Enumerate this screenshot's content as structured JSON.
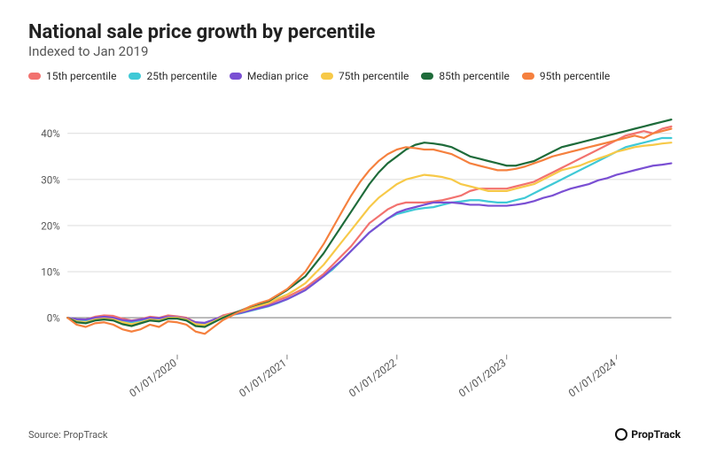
{
  "title": "National sale price growth by percentile",
  "subtitle": "Indexed to Jan 2019",
  "source_label": "Source: PropTrack",
  "brand": "PropTrack",
  "chart": {
    "type": "line",
    "background_color": "#ffffff",
    "grid_color": "#e0e0e0",
    "axis_text_color": "#555555",
    "title_fontsize": 22,
    "subtitle_fontsize": 15,
    "legend_fontsize": 12,
    "tick_fontsize": 11,
    "line_width": 2,
    "x": {
      "min": 0,
      "max": 66,
      "ticks": [
        {
          "pos": 12,
          "label": "01/01/2020"
        },
        {
          "pos": 24,
          "label": "01/01/2021"
        },
        {
          "pos": 36,
          "label": "01/01/2022"
        },
        {
          "pos": 48,
          "label": "01/01/2023"
        },
        {
          "pos": 60,
          "label": "01/01/2024"
        }
      ]
    },
    "y": {
      "min": -8,
      "max": 45,
      "ticks": [
        {
          "pos": 0,
          "label": "0%"
        },
        {
          "pos": 10,
          "label": "10%"
        },
        {
          "pos": 20,
          "label": "20%"
        },
        {
          "pos": 30,
          "label": "30%"
        },
        {
          "pos": 40,
          "label": "40%"
        }
      ]
    },
    "legend_order": [
      "p15",
      "p25",
      "median",
      "p75",
      "p85",
      "p95"
    ],
    "series": {
      "p15": {
        "label": "15th percentile",
        "color": "#f2726f",
        "values": [
          0,
          -0.5,
          -0.4,
          0.2,
          0.5,
          0.4,
          -0.2,
          -0.6,
          -0.3,
          0.2,
          0.0,
          0.5,
          0.3,
          0.0,
          -1.0,
          -1.2,
          -0.5,
          0.5,
          1.0,
          1.5,
          2.0,
          2.5,
          3.0,
          3.8,
          4.5,
          5.5,
          6.5,
          8.0,
          9.5,
          11.5,
          13.5,
          15.5,
          18.0,
          20.5,
          22.0,
          23.5,
          24.5,
          25.0,
          25.0,
          25.0,
          25.2,
          25.5,
          26.0,
          26.5,
          27.5,
          28.0,
          28.0,
          28.0,
          28.0,
          28.5,
          29.0,
          29.5,
          30.5,
          31.5,
          32.5,
          33.5,
          34.5,
          35.5,
          36.5,
          37.5,
          38.5,
          39.5,
          40.0,
          40.5,
          40.0,
          41.0,
          41.5
        ]
      },
      "p25": {
        "label": "25th percentile",
        "color": "#3fc9d6",
        "values": [
          0,
          -0.5,
          -0.6,
          -0.2,
          0.0,
          -0.2,
          -0.8,
          -1.0,
          -0.6,
          -0.2,
          -0.4,
          0.0,
          0.0,
          -0.3,
          -1.2,
          -1.4,
          -0.6,
          0.2,
          0.6,
          1.0,
          1.5,
          2.0,
          2.5,
          3.2,
          4.0,
          5.0,
          6.0,
          7.5,
          9.0,
          10.5,
          12.5,
          14.5,
          16.5,
          18.5,
          20.0,
          21.5,
          22.5,
          23.0,
          23.5,
          23.8,
          24.0,
          24.5,
          25.0,
          25.2,
          25.5,
          25.5,
          25.2,
          25.0,
          25.0,
          25.5,
          26.0,
          27.0,
          28.0,
          29.0,
          30.0,
          31.0,
          32.0,
          33.0,
          34.0,
          35.0,
          36.0,
          37.0,
          37.5,
          38.0,
          38.5,
          39.0,
          39.0
        ]
      },
      "median": {
        "label": "Median price",
        "color": "#7a4fd3",
        "values": [
          0,
          -0.3,
          -0.4,
          0.0,
          0.2,
          0.0,
          -0.5,
          -0.7,
          -0.4,
          0.0,
          -0.1,
          0.2,
          0.1,
          -0.2,
          -1.0,
          -1.1,
          -0.4,
          0.3,
          0.7,
          1.1,
          1.6,
          2.1,
          2.6,
          3.3,
          4.0,
          5.0,
          6.0,
          7.5,
          9.0,
          10.8,
          12.5,
          14.5,
          16.5,
          18.5,
          20.0,
          21.5,
          22.8,
          23.5,
          24.0,
          24.5,
          25.0,
          25.0,
          25.0,
          24.8,
          24.5,
          24.5,
          24.3,
          24.3,
          24.3,
          24.5,
          24.8,
          25.3,
          26.0,
          26.5,
          27.3,
          28.0,
          28.5,
          29.0,
          29.8,
          30.3,
          31.0,
          31.5,
          32.0,
          32.5,
          33.0,
          33.2,
          33.5
        ]
      },
      "p75": {
        "label": "75th percentile",
        "color": "#f7c948",
        "values": [
          0,
          -0.8,
          -1.0,
          -0.4,
          -0.2,
          -0.4,
          -1.0,
          -1.4,
          -1.0,
          -0.4,
          -0.6,
          0.0,
          0.0,
          -0.4,
          -1.4,
          -1.6,
          -0.8,
          0.2,
          0.8,
          1.4,
          2.0,
          2.6,
          3.2,
          4.2,
          5.0,
          6.2,
          7.5,
          9.5,
          11.5,
          14.0,
          16.5,
          19.0,
          21.5,
          24.0,
          26.0,
          27.5,
          29.0,
          30.0,
          30.5,
          31.0,
          30.8,
          30.5,
          30.0,
          29.0,
          28.5,
          28.0,
          27.5,
          27.5,
          27.5,
          28.0,
          28.5,
          29.0,
          30.0,
          31.0,
          32.0,
          32.5,
          33.0,
          33.8,
          34.5,
          35.2,
          36.0,
          36.5,
          37.0,
          37.3,
          37.5,
          37.8,
          38.0
        ]
      },
      "p85": {
        "label": "85th percentile",
        "color": "#1e6b3a",
        "values": [
          0,
          -1.0,
          -1.2,
          -0.6,
          -0.4,
          -0.6,
          -1.4,
          -1.8,
          -1.2,
          -0.6,
          -0.8,
          -0.2,
          -0.2,
          -0.6,
          -1.8,
          -2.0,
          -1.0,
          0.0,
          0.8,
          1.6,
          2.4,
          3.0,
          3.6,
          4.8,
          6.0,
          7.5,
          9.0,
          11.5,
          14.0,
          17.0,
          20.0,
          23.0,
          26.0,
          29.0,
          31.5,
          33.5,
          35.0,
          36.5,
          37.5,
          38.0,
          37.8,
          37.5,
          37.0,
          36.0,
          35.0,
          34.5,
          34.0,
          33.5,
          33.0,
          33.0,
          33.5,
          34.0,
          35.0,
          36.0,
          37.0,
          37.5,
          38.0,
          38.5,
          39.0,
          39.5,
          40.0,
          40.5,
          41.0,
          41.5,
          42.0,
          42.5,
          43.0
        ]
      },
      "p95": {
        "label": "95th percentile",
        "color": "#f5803e",
        "values": [
          0,
          -1.5,
          -2.0,
          -1.2,
          -1.0,
          -1.5,
          -2.5,
          -3.0,
          -2.5,
          -1.5,
          -2.0,
          -0.8,
          -1.0,
          -1.5,
          -3.0,
          -3.5,
          -2.0,
          -0.5,
          0.5,
          1.5,
          2.5,
          3.2,
          3.8,
          5.0,
          6.2,
          8.0,
          10.0,
          13.0,
          16.0,
          19.5,
          23.0,
          26.5,
          29.5,
          32.0,
          34.0,
          35.5,
          36.5,
          37.0,
          36.8,
          36.5,
          36.5,
          36.0,
          35.5,
          34.5,
          33.5,
          33.0,
          32.5,
          32.0,
          32.0,
          32.3,
          32.8,
          33.5,
          34.2,
          35.0,
          35.5,
          36.0,
          36.5,
          37.0,
          37.5,
          38.0,
          38.5,
          39.0,
          39.5,
          39.0,
          40.0,
          40.5,
          41.0
        ]
      }
    }
  }
}
